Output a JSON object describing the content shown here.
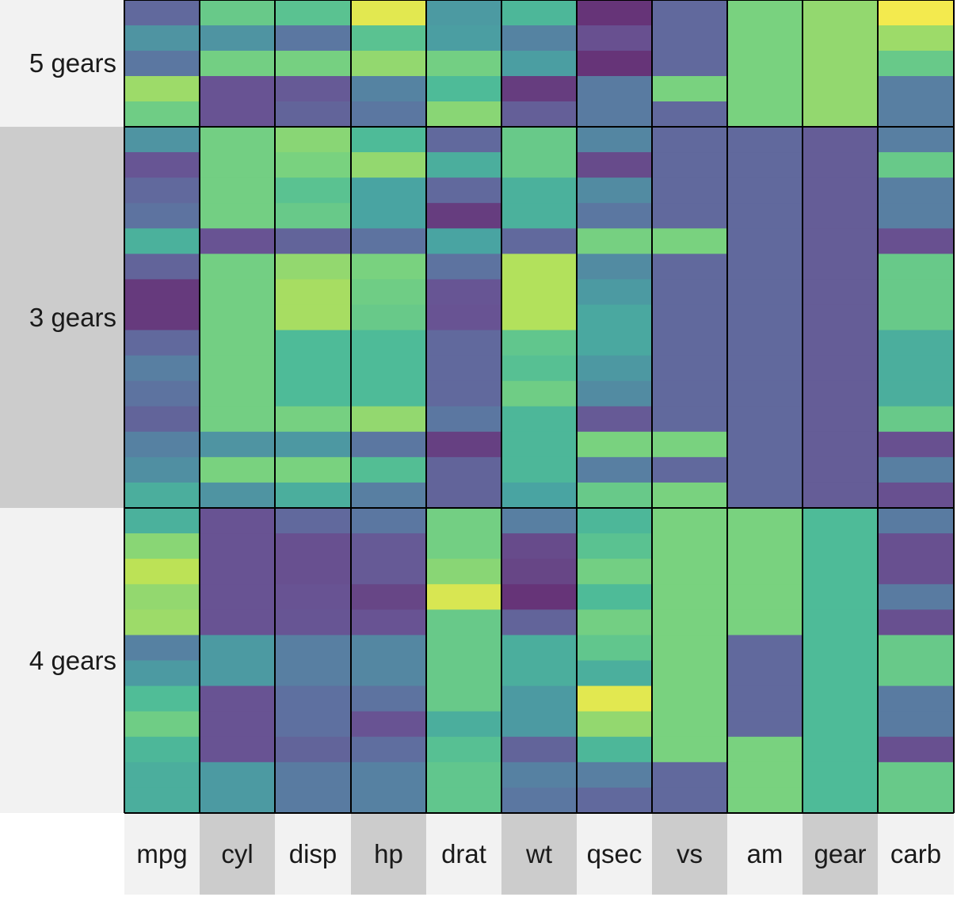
{
  "chart_data": {
    "type": "heatmap",
    "title": "",
    "columns": [
      "mpg",
      "cyl",
      "disp",
      "hp",
      "drat",
      "wt",
      "qsec",
      "vs",
      "am",
      "gear",
      "carb"
    ],
    "colorscale": "viridis",
    "value_range": [
      0,
      1
    ],
    "grid": false,
    "legend": "none",
    "groups": [
      {
        "label": "5 gears",
        "cells": [
          [
            0.22,
            0.7,
            0.66,
            0.95,
            0.45,
            0.6,
            0.02,
            0.22,
            0.75,
            0.8,
            0.98
          ],
          [
            0.42,
            0.42,
            0.28,
            0.66,
            0.47,
            0.34,
            0.12,
            0.22,
            0.75,
            0.8,
            0.82
          ],
          [
            0.28,
            0.73,
            0.74,
            0.8,
            0.73,
            0.47,
            0.02,
            0.22,
            0.75,
            0.8,
            0.7
          ],
          [
            0.82,
            0.13,
            0.16,
            0.34,
            0.62,
            0.05,
            0.3,
            0.75,
            0.75,
            0.8,
            0.32
          ],
          [
            0.72,
            0.13,
            0.2,
            0.28,
            0.78,
            0.18,
            0.3,
            0.22,
            0.75,
            0.8,
            0.32
          ]
        ]
      },
      {
        "label": "3 gears",
        "cells": [
          [
            0.42,
            0.73,
            0.78,
            0.62,
            0.22,
            0.7,
            0.35,
            0.22,
            0.22,
            0.17,
            0.32
          ],
          [
            0.14,
            0.73,
            0.75,
            0.8,
            0.55,
            0.7,
            0.1,
            0.22,
            0.22,
            0.17,
            0.7
          ],
          [
            0.22,
            0.73,
            0.66,
            0.5,
            0.22,
            0.57,
            0.38,
            0.22,
            0.22,
            0.17,
            0.32
          ],
          [
            0.26,
            0.73,
            0.7,
            0.5,
            0.05,
            0.57,
            0.28,
            0.22,
            0.22,
            0.17,
            0.32
          ],
          [
            0.57,
            0.13,
            0.2,
            0.26,
            0.5,
            0.22,
            0.74,
            0.75,
            0.22,
            0.17,
            0.12
          ],
          [
            0.2,
            0.73,
            0.8,
            0.75,
            0.26,
            0.86,
            0.38,
            0.22,
            0.22,
            0.17,
            0.7
          ],
          [
            0.04,
            0.73,
            0.84,
            0.72,
            0.14,
            0.86,
            0.45,
            0.22,
            0.22,
            0.17,
            0.7
          ],
          [
            0.04,
            0.73,
            0.84,
            0.7,
            0.13,
            0.86,
            0.52,
            0.22,
            0.22,
            0.17,
            0.7
          ],
          [
            0.22,
            0.73,
            0.62,
            0.62,
            0.22,
            0.68,
            0.52,
            0.22,
            0.22,
            0.17,
            0.55
          ],
          [
            0.32,
            0.73,
            0.62,
            0.62,
            0.22,
            0.65,
            0.44,
            0.22,
            0.22,
            0.17,
            0.55
          ],
          [
            0.26,
            0.73,
            0.62,
            0.62,
            0.22,
            0.72,
            0.38,
            0.22,
            0.22,
            0.17,
            0.55
          ],
          [
            0.2,
            0.73,
            0.74,
            0.8,
            0.28,
            0.6,
            0.16,
            0.22,
            0.22,
            0.17,
            0.7
          ],
          [
            0.33,
            0.42,
            0.44,
            0.28,
            0.06,
            0.6,
            0.75,
            0.75,
            0.22,
            0.17,
            0.12
          ],
          [
            0.4,
            0.75,
            0.75,
            0.64,
            0.2,
            0.6,
            0.32,
            0.22,
            0.22,
            0.17,
            0.32
          ],
          [
            0.55,
            0.42,
            0.55,
            0.32,
            0.2,
            0.5,
            0.7,
            0.75,
            0.22,
            0.17,
            0.12
          ]
        ]
      },
      {
        "label": "4 gears",
        "cells": [
          [
            0.57,
            0.13,
            0.22,
            0.28,
            0.73,
            0.32,
            0.6,
            0.75,
            0.75,
            0.62,
            0.3
          ],
          [
            0.78,
            0.13,
            0.12,
            0.16,
            0.73,
            0.1,
            0.66,
            0.75,
            0.75,
            0.62,
            0.12
          ],
          [
            0.88,
            0.13,
            0.12,
            0.16,
            0.78,
            0.08,
            0.73,
            0.75,
            0.75,
            0.62,
            0.12
          ],
          [
            0.8,
            0.13,
            0.13,
            0.08,
            0.93,
            0.02,
            0.62,
            0.75,
            0.75,
            0.62,
            0.3
          ],
          [
            0.82,
            0.13,
            0.14,
            0.13,
            0.7,
            0.2,
            0.73,
            0.75,
            0.75,
            0.62,
            0.12
          ],
          [
            0.33,
            0.45,
            0.32,
            0.36,
            0.7,
            0.55,
            0.68,
            0.75,
            0.22,
            0.62,
            0.7
          ],
          [
            0.45,
            0.45,
            0.32,
            0.36,
            0.7,
            0.55,
            0.56,
            0.75,
            0.22,
            0.62,
            0.7
          ],
          [
            0.63,
            0.13,
            0.25,
            0.26,
            0.7,
            0.45,
            0.95,
            0.75,
            0.22,
            0.62,
            0.3
          ],
          [
            0.72,
            0.13,
            0.25,
            0.13,
            0.55,
            0.45,
            0.8,
            0.75,
            0.22,
            0.62,
            0.3
          ],
          [
            0.6,
            0.13,
            0.2,
            0.24,
            0.65,
            0.2,
            0.6,
            0.75,
            0.75,
            0.62,
            0.12
          ],
          [
            0.55,
            0.45,
            0.3,
            0.33,
            0.68,
            0.33,
            0.32,
            0.22,
            0.75,
            0.62,
            0.7
          ],
          [
            0.55,
            0.45,
            0.3,
            0.33,
            0.68,
            0.28,
            0.22,
            0.22,
            0.75,
            0.62,
            0.7
          ]
        ]
      }
    ]
  }
}
